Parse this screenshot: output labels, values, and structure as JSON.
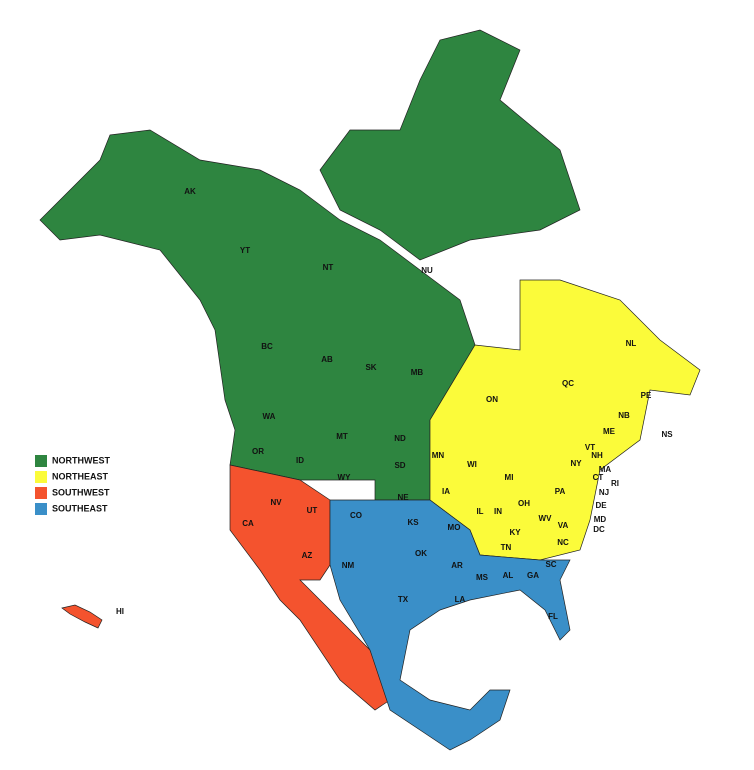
{
  "legend": [
    {
      "name": "NORTHWEST",
      "color": "#2e8540"
    },
    {
      "name": "NORTHEAST",
      "color": "#fbfb3a"
    },
    {
      "name": "SOUTHWEST",
      "color": "#f4532e"
    },
    {
      "name": "SOUTHEAST",
      "color": "#3a8fc8"
    }
  ],
  "labels": [
    "AK",
    "YT",
    "NT",
    "NU",
    "BC",
    "AB",
    "SK",
    "MB",
    "WA",
    "OR",
    "ID",
    "MT",
    "WY",
    "ND",
    "SD",
    "NE",
    "MN",
    "ON",
    "QC",
    "NL",
    "PE",
    "NB",
    "NS",
    "ME",
    "NH",
    "VT",
    "NY",
    "MA",
    "CT",
    "RI",
    "NJ",
    "DE",
    "MD",
    "DC",
    "WI",
    "MI",
    "IA",
    "IL",
    "IN",
    "OH",
    "PA",
    "WV",
    "VA",
    "KY",
    "TN",
    "NC",
    "SC",
    "MO",
    "CO",
    "KS",
    "UT",
    "NV",
    "CA",
    "AZ",
    "NM",
    "OK",
    "AR",
    "MS",
    "AL",
    "GA",
    "LA",
    "TX",
    "FL",
    "HI"
  ]
}
